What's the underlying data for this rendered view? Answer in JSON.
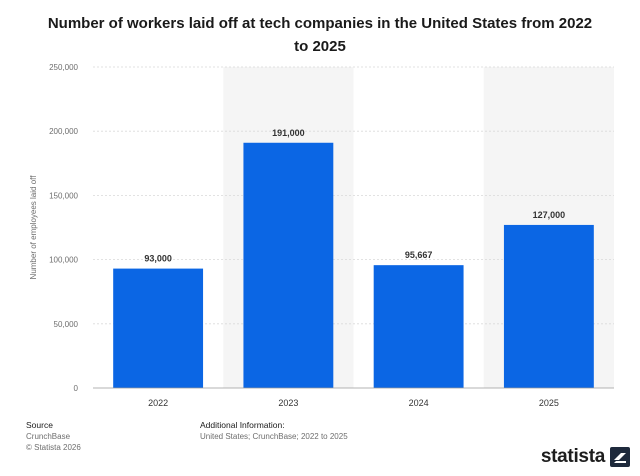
{
  "chart_data": {
    "type": "bar",
    "title": "Number of workers laid off at tech companies in the United States from 2022 to 2025",
    "ylabel": "Number of employees laid off",
    "xlabel": "",
    "categories": [
      "2022",
      "2023",
      "2024",
      "2025"
    ],
    "values": [
      93000,
      191000,
      95667,
      127000
    ],
    "value_labels": [
      "93,000",
      "191,000",
      "95,667",
      "127,000"
    ],
    "ylim": [
      0,
      250000
    ],
    "yticks": [
      0,
      50000,
      100000,
      150000,
      200000,
      250000
    ],
    "ytick_labels": [
      "0",
      "50,000",
      "100,000",
      "150,000",
      "200,000",
      "250,000"
    ],
    "grid": true,
    "legend": "none",
    "bar_color": "#0b66e4",
    "shading_color": "#f5f5f5"
  },
  "footer": {
    "source_heading": "Source",
    "source_lines": [
      "CrunchBase",
      "© Statista 2026"
    ],
    "info_heading": "Additional Information:",
    "info_line": "United States; CrunchBase; 2022 to 2025"
  },
  "brand": {
    "name": "statista",
    "icon": "statista-logo-icon"
  }
}
